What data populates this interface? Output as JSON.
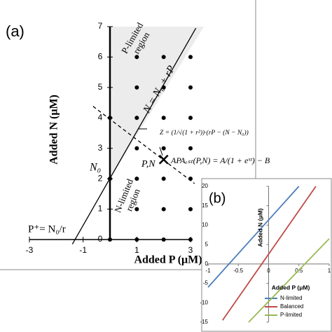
{
  "chart_data": [
    {
      "type": "line",
      "panel_label": "(a)",
      "xlabel": "Added P (μM)",
      "ylabel": "Added N (μM)",
      "xlim": [
        -3,
        3
      ],
      "ylim": [
        0,
        7
      ],
      "xticks": [
        -3,
        -1,
        1,
        3
      ],
      "yticks": [
        0,
        1,
        2,
        3,
        4,
        5,
        6,
        7
      ],
      "region_p": [
        "P-limited",
        "region"
      ],
      "region_n": [
        "N-limited",
        "region"
      ],
      "line_label": "N = N₀ + rP",
      "z_formula": "Z = (1/√(1 + r²))·(rP − (N − N₀))",
      "apa_formula": "APAₑₛₜ(P,N) = A/(1 + eˢᶻ) − B",
      "point_label": "P,N",
      "n0_label": "N₀",
      "pplus_label": "P⁺= N₀/r",
      "shade": {
        "color": "#ececec",
        "x": [
          0,
          3.5,
          0
        ],
        "y": [
          2,
          7,
          7
        ]
      },
      "series": [
        {
          "color": "#000000",
          "style": "solid",
          "x": [
            -1.4,
            3.2
          ],
          "values": [
            -0.15,
            6.95
          ]
        },
        {
          "color": "#000000",
          "style": "dashed",
          "x": [
            -0.63,
            3.15
          ],
          "values": [
            4.38,
            1.84
          ]
        }
      ],
      "points": {
        "color": "#000000",
        "x": [
          0,
          1,
          2,
          3,
          1,
          2,
          3,
          0,
          1,
          2,
          3,
          1,
          2,
          3,
          0,
          1,
          2,
          3,
          1,
          2,
          3,
          1,
          2,
          3
        ],
        "y": [
          0,
          0,
          0,
          0,
          1,
          1,
          1,
          2,
          2,
          2,
          2,
          3,
          3,
          3,
          4,
          4,
          4,
          4,
          5,
          5,
          5,
          6,
          6,
          6
        ]
      },
      "marker": {
        "x": 2,
        "y": 2.63
      }
    },
    {
      "type": "line",
      "panel_label": "(b)",
      "xlabel": "Added P (μM)",
      "ylabel": "Added N (μM)",
      "xlim": [
        -1,
        1
      ],
      "ylim": [
        -15,
        20
      ],
      "xticks": [
        -1,
        -0.5,
        0,
        0.5,
        1
      ],
      "yticks": [
        -15,
        -10,
        -5,
        0,
        5,
        10,
        15,
        20
      ],
      "legend": "lower right",
      "series": [
        {
          "name": "N-limited",
          "color": "#4a7ebb",
          "x": [
            -1,
            0.5
          ],
          "values": [
            -6,
            20
          ]
        },
        {
          "name": "Balanced",
          "color": "#be4b48",
          "x": [
            -0.76,
            0.78
          ],
          "values": [
            -14.5,
            20
          ]
        },
        {
          "name": "P-limited",
          "color": "#98b954",
          "x": [
            -0.33,
            1
          ],
          "values": [
            -15,
            6.5
          ]
        }
      ]
    }
  ]
}
